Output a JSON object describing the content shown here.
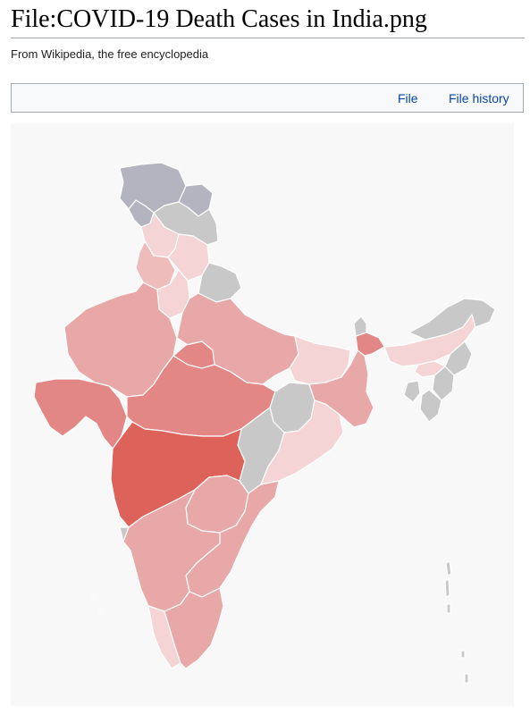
{
  "page": {
    "title": "File:COVID-19 Death Cases in India.png",
    "tagline": "From Wikipedia, the free encyclopedia"
  },
  "tabs": [
    {
      "label": "File"
    },
    {
      "label": "File history"
    }
  ],
  "colors": {
    "no_data": "#c8c8c8",
    "disputed": "#b4b4c0",
    "lowest": "#f4d4d4",
    "low": "#efbcbc",
    "medium": "#e9a8a8",
    "high": "#e28686",
    "highest": "#dd6259",
    "background": "#f8f8f8"
  }
}
